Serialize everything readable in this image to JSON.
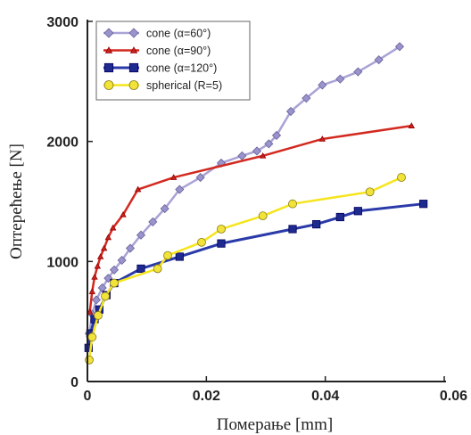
{
  "chart_data": {
    "type": "line",
    "xlabel": "Померање [mm]",
    "ylabel": "Оптерећење [N]",
    "xlim": [
      0,
      0.06
    ],
    "ylim": [
      0,
      3000
    ],
    "xticks": [
      0,
      0.02,
      0.04,
      0.06
    ],
    "xtick_labels": [
      "0",
      "0.02",
      "0.04",
      "0.06"
    ],
    "yticks": [
      0,
      1000,
      2000,
      3000
    ],
    "ytick_labels": [
      "0",
      "1000",
      "2000",
      "3000"
    ],
    "grid": false,
    "legend_position": "top-left",
    "series": [
      {
        "name": "cone (α=60°)",
        "color": "#9a94cc",
        "line_color": "#a9a3d6",
        "marker": "diamond",
        "x": [
          0.0003,
          0.0008,
          0.0015,
          0.0025,
          0.0035,
          0.0045,
          0.0058,
          0.0072,
          0.009,
          0.011,
          0.013,
          0.0155,
          0.019,
          0.0225,
          0.026,
          0.0285,
          0.0305,
          0.0318,
          0.0342,
          0.0368,
          0.0395,
          0.0425,
          0.0455,
          0.049,
          0.0525
        ],
        "y": [
          400,
          560,
          680,
          780,
          860,
          930,
          1010,
          1110,
          1220,
          1330,
          1440,
          1600,
          1700,
          1820,
          1880,
          1920,
          1980,
          2050,
          2250,
          2360,
          2470,
          2520,
          2580,
          2680,
          2790
        ]
      },
      {
        "name": "cone (α=90°)",
        "color": "#c8241f",
        "line_color": "#d22a20",
        "marker": "triangle",
        "x": [
          0.0004,
          0.0008,
          0.0012,
          0.0017,
          0.0022,
          0.0028,
          0.0035,
          0.0043,
          0.006,
          0.0085,
          0.0145,
          0.0295,
          0.0395,
          0.0545
        ],
        "y": [
          580,
          750,
          870,
          960,
          1040,
          1110,
          1200,
          1280,
          1390,
          1600,
          1700,
          1880,
          2020,
          2130
        ]
      },
      {
        "name": "cone (α=120°)",
        "color": "#1f2a8f",
        "line_color": "#2a3aa8",
        "marker": "square",
        "x": [
          0.0002,
          0.0005,
          0.0012,
          0.002,
          0.0032,
          0.0045,
          0.009,
          0.0155,
          0.0225,
          0.0345,
          0.0385,
          0.0425,
          0.0455,
          0.0565
        ],
        "y": [
          280,
          400,
          520,
          600,
          720,
          820,
          940,
          1040,
          1150,
          1270,
          1310,
          1370,
          1420,
          1480
        ]
      },
      {
        "name": "spherical (R=5)",
        "color": "#f1e33a",
        "line_color": "#f5e51e",
        "marker": "circle",
        "x": [
          0.0003,
          0.0008,
          0.0018,
          0.003,
          0.0045,
          0.0118,
          0.0135,
          0.0192,
          0.0225,
          0.0295,
          0.0345,
          0.0475,
          0.0528
        ],
        "y": [
          180,
          370,
          550,
          710,
          820,
          940,
          1050,
          1160,
          1270,
          1380,
          1480,
          1580,
          1700
        ]
      }
    ]
  }
}
